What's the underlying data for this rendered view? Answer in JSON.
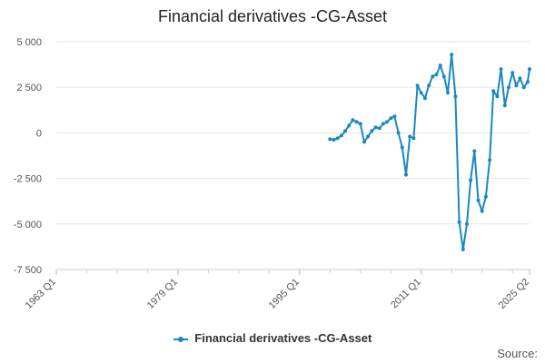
{
  "chart_data": {
    "type": "line",
    "title": "Financial derivatives -CG-Asset",
    "xlabel": "",
    "ylabel": "",
    "x_tick_labels": [
      "1963 Q1",
      "1979 Q1",
      "1995 Q1",
      "2011 Q1",
      "2025 Q2"
    ],
    "y_tick_labels": [
      "5 000",
      "2 500",
      "0",
      "-2 500",
      "-5 000",
      "-7 500"
    ],
    "y_tick_values": [
      5000,
      2500,
      0,
      -2500,
      -5000,
      -7500
    ],
    "ylim": [
      -7500,
      5000
    ],
    "xlim": [
      "1963 Q1",
      "2025 Q2"
    ],
    "grid": "horizontal",
    "legend": "bottom",
    "series": [
      {
        "name": "Financial derivatives -CG-Asset",
        "color": "#1a88c2",
        "points": [
          [
            "1999 Q1",
            -350
          ],
          [
            "1999 Q3",
            -380
          ],
          [
            "2000 Q1",
            -300
          ],
          [
            "2000 Q3",
            -150
          ],
          [
            "2001 Q1",
            100
          ],
          [
            "2001 Q3",
            400
          ],
          [
            "2002 Q1",
            700
          ],
          [
            "2002 Q3",
            600
          ],
          [
            "2003 Q1",
            500
          ],
          [
            "2003 Q3",
            -500
          ],
          [
            "2004 Q1",
            -200
          ],
          [
            "2004 Q3",
            100
          ],
          [
            "2005 Q1",
            300
          ],
          [
            "2005 Q3",
            250
          ],
          [
            "2006 Q1",
            500
          ],
          [
            "2006 Q3",
            600
          ],
          [
            "2007 Q1",
            800
          ],
          [
            "2007 Q3",
            900
          ],
          [
            "2008 Q1",
            0
          ],
          [
            "2008 Q3",
            -800
          ],
          [
            "2009 Q1",
            -2300
          ],
          [
            "2009 Q3",
            -200
          ],
          [
            "2010 Q1",
            -300
          ],
          [
            "2010 Q3",
            2600
          ],
          [
            "2011 Q1",
            2200
          ],
          [
            "2011 Q3",
            1900
          ],
          [
            "2012 Q1",
            2600
          ],
          [
            "2012 Q3",
            3100
          ],
          [
            "2013 Q1",
            3200
          ],
          [
            "2013 Q3",
            3700
          ],
          [
            "2014 Q1",
            3100
          ],
          [
            "2014 Q3",
            2200
          ],
          [
            "2015 Q1",
            4300
          ],
          [
            "2015 Q3",
            2000
          ],
          [
            "2016 Q1",
            -4900
          ],
          [
            "2016 Q3",
            -6400
          ],
          [
            "2017 Q1",
            -5000
          ],
          [
            "2017 Q3",
            -2600
          ],
          [
            "2018 Q1",
            -1000
          ],
          [
            "2018 Q3",
            -3700
          ],
          [
            "2019 Q1",
            -4300
          ],
          [
            "2019 Q3",
            -3500
          ],
          [
            "2020 Q1",
            -1500
          ],
          [
            "2020 Q3",
            2300
          ],
          [
            "2021 Q1",
            2000
          ],
          [
            "2021 Q3",
            3500
          ],
          [
            "2022 Q1",
            1500
          ],
          [
            "2022 Q3",
            2500
          ],
          [
            "2023 Q1",
            3300
          ],
          [
            "2023 Q3",
            2600
          ],
          [
            "2024 Q1",
            3000
          ],
          [
            "2024 Q3",
            2500
          ],
          [
            "2025 Q1",
            2800
          ],
          [
            "2025 Q2",
            3500
          ]
        ]
      }
    ]
  },
  "source_label": "Source:"
}
